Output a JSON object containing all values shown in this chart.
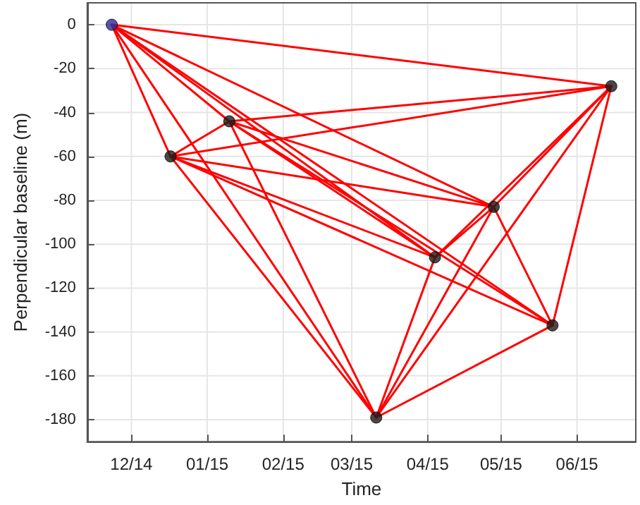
{
  "chart_data": {
    "type": "line",
    "xlabel": "Time",
    "ylabel": "Perpendicular baseline (m)",
    "grid": true,
    "line_style": "solid",
    "xlim": [
      "2014-11-13",
      "2015-06-25"
    ],
    "ylim": [
      -190,
      10
    ],
    "xticks": [
      {
        "value": "2014-12-01",
        "label": "12/14"
      },
      {
        "value": "2015-01-01",
        "label": "01/15"
      },
      {
        "value": "2015-02-01",
        "label": "02/15"
      },
      {
        "value": "2015-03-01",
        "label": "03/15"
      },
      {
        "value": "2015-04-01",
        "label": "04/15"
      },
      {
        "value": "2015-05-01",
        "label": "05/15"
      },
      {
        "value": "2015-06-01",
        "label": "06/15"
      }
    ],
    "yticks": [
      0,
      -20,
      -40,
      -60,
      -80,
      -100,
      -120,
      -140,
      -160,
      -180
    ],
    "series": [
      {
        "marker": "none",
        "color": "#ff0000",
        "x": [
          "2014-11-23",
          "2014-12-17"
        ],
        "values": [
          0,
          -60
        ]
      },
      {
        "type": "line",
        "marker": "none",
        "color": "#ff0000",
        "x": [
          "2014-11-23",
          "2015-01-10"
        ],
        "values": [
          0,
          -44
        ]
      },
      {
        "type": "line",
        "marker": "none",
        "color": "#ff0000",
        "x": [
          "2014-11-23",
          "2015-03-11"
        ],
        "values": [
          0,
          -179
        ]
      },
      {
        "type": "line",
        "marker": "none",
        "color": "#ff0000",
        "x": [
          "2014-11-23",
          "2015-04-04"
        ],
        "values": [
          0,
          -106
        ]
      },
      {
        "type": "line",
        "marker": "none",
        "color": "#ff0000",
        "x": [
          "2014-11-23",
          "2015-04-28"
        ],
        "values": [
          0,
          -83
        ]
      },
      {
        "type": "line",
        "marker": "none",
        "color": "#ff0000",
        "x": [
          "2014-11-23",
          "2015-05-22"
        ],
        "values": [
          0,
          -137
        ]
      },
      {
        "type": "line",
        "marker": "none",
        "color": "#ff0000",
        "x": [
          "2014-11-23",
          "2015-06-15"
        ],
        "values": [
          0,
          -28
        ]
      },
      {
        "type": "line",
        "marker": "none",
        "color": "#ff0000",
        "x": [
          "2014-12-17",
          "2015-01-10"
        ],
        "values": [
          -60,
          -44
        ]
      },
      {
        "type": "line",
        "marker": "none",
        "color": "#ff0000",
        "x": [
          "2014-12-17",
          "2015-03-11"
        ],
        "values": [
          -60,
          -179
        ]
      },
      {
        "type": "line",
        "marker": "none",
        "color": "#ff0000",
        "x": [
          "2014-12-17",
          "2015-04-04"
        ],
        "values": [
          -60,
          -106
        ]
      },
      {
        "type": "line",
        "marker": "none",
        "color": "#ff0000",
        "x": [
          "2014-12-17",
          "2015-04-28"
        ],
        "values": [
          -60,
          -83
        ]
      },
      {
        "type": "line",
        "marker": "none",
        "color": "#ff0000",
        "x": [
          "2014-12-17",
          "2015-05-22"
        ],
        "values": [
          -60,
          -137
        ]
      },
      {
        "type": "line",
        "marker": "none",
        "color": "#ff0000",
        "x": [
          "2014-12-17",
          "2015-06-15"
        ],
        "values": [
          -60,
          -28
        ]
      },
      {
        "type": "line",
        "marker": "none",
        "color": "#ff0000",
        "x": [
          "2015-01-10",
          "2015-03-11"
        ],
        "values": [
          -44,
          -179
        ]
      },
      {
        "type": "line",
        "marker": "none",
        "color": "#ff0000",
        "x": [
          "2015-01-10",
          "2015-04-04"
        ],
        "values": [
          -44,
          -106
        ]
      },
      {
        "type": "line",
        "marker": "none",
        "color": "#ff0000",
        "x": [
          "2015-01-10",
          "2015-04-28"
        ],
        "values": [
          -44,
          -83
        ]
      },
      {
        "type": "line",
        "marker": "none",
        "color": "#ff0000",
        "x": [
          "2015-01-10",
          "2015-05-22"
        ],
        "values": [
          -44,
          -137
        ]
      },
      {
        "type": "line",
        "marker": "none",
        "color": "#ff0000",
        "x": [
          "2015-01-10",
          "2015-06-15"
        ],
        "values": [
          -44,
          -28
        ]
      },
      {
        "type": "line",
        "marker": "none",
        "color": "#ff0000",
        "x": [
          "2015-03-11",
          "2015-04-04"
        ],
        "values": [
          -179,
          -106
        ]
      },
      {
        "type": "line",
        "marker": "none",
        "color": "#ff0000",
        "x": [
          "2015-03-11",
          "2015-04-28"
        ],
        "values": [
          -179,
          -83
        ]
      },
      {
        "type": "line",
        "marker": "none",
        "color": "#ff0000",
        "x": [
          "2015-03-11",
          "2015-05-22"
        ],
        "values": [
          -179,
          -137
        ]
      },
      {
        "type": "line",
        "marker": "none",
        "color": "#ff0000",
        "x": [
          "2015-03-11",
          "2015-06-15"
        ],
        "values": [
          -179,
          -28
        ]
      },
      {
        "type": "line",
        "marker": "none",
        "color": "#ff0000",
        "x": [
          "2015-04-04",
          "2015-04-28"
        ],
        "values": [
          -106,
          -83
        ]
      },
      {
        "type": "line",
        "marker": "none",
        "color": "#ff0000",
        "x": [
          "2015-04-04",
          "2015-06-15"
        ],
        "values": [
          -106,
          -28
        ]
      },
      {
        "type": "line",
        "marker": "none",
        "color": "#ff0000",
        "x": [
          "2015-04-28",
          "2015-05-22"
        ],
        "values": [
          -83,
          -137
        ]
      },
      {
        "type": "line",
        "marker": "none",
        "color": "#ff0000",
        "x": [
          "2015-04-28",
          "2015-06-15"
        ],
        "values": [
          -83,
          -28
        ]
      },
      {
        "type": "line",
        "marker": "none",
        "color": "#ff0000",
        "x": [
          "2015-05-22",
          "2015-06-15"
        ],
        "values": [
          -137,
          -28
        ]
      },
      {
        "type": "scatter",
        "marker": "circle",
        "x": [
          "2014-11-23",
          "2014-12-17",
          "2015-01-10",
          "2015-03-11",
          "2015-04-04",
          "2015-04-28",
          "2015-05-22",
          "2015-06-15"
        ],
        "values": [
          0,
          -60,
          -44,
          -179,
          -106,
          -83,
          -137,
          -28
        ],
        "colors": [
          "#2b2b9a",
          "#1a1a1a",
          "#1a1a1a",
          "#1a1a1a",
          "#1a1a1a",
          "#1a1a1a",
          "#1a1a1a",
          "#1a1a1a"
        ]
      }
    ]
  }
}
